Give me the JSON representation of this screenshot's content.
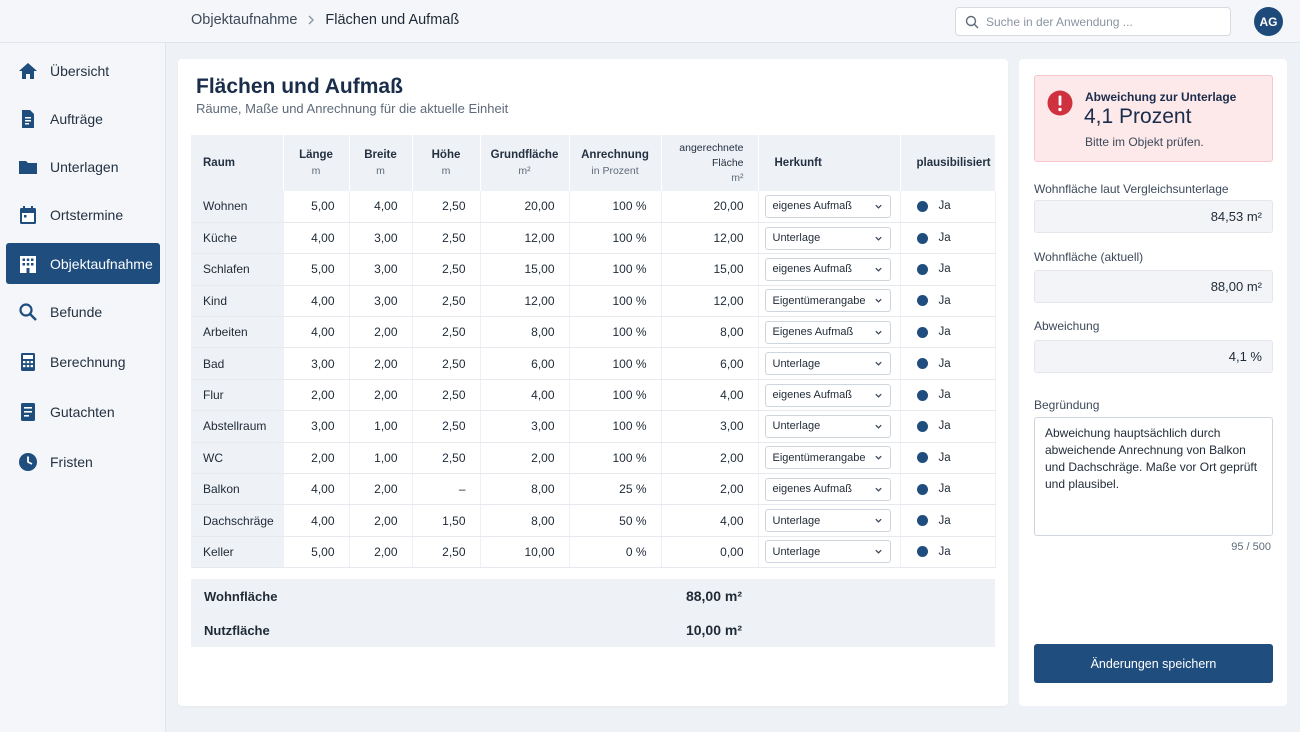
{
  "breadcrumb": {
    "parent": "Objektaufnahme",
    "current": "Flächen und Aufmaß"
  },
  "search": {
    "placeholder": "Suche in der Anwendung ..."
  },
  "user": {
    "initials": "AG"
  },
  "sidebar": {
    "items": [
      {
        "label": "Übersicht",
        "icon": "home-icon"
      },
      {
        "label": "Aufträge",
        "icon": "document-icon"
      },
      {
        "label": "Unterlagen",
        "icon": "folder-icon"
      },
      {
        "label": "Ortstermine",
        "icon": "calendar-icon"
      },
      {
        "label": "Objektaufnahme",
        "icon": "building-icon",
        "active": true
      },
      {
        "label": "Befunde",
        "icon": "search-icon"
      },
      {
        "label": "Berechnung",
        "icon": "calculator-icon"
      },
      {
        "label": "Gutachten",
        "icon": "report-icon"
      },
      {
        "label": "Fristen",
        "icon": "clock-icon"
      }
    ]
  },
  "page": {
    "title": "Flächen und Aufmaß",
    "subtitle": "Räume, Maße und Anrechnung für die aktuelle Einheit"
  },
  "table": {
    "headers": {
      "raum": "Raum",
      "laenge": "Länge",
      "laenge_unit": "m",
      "breite": "Breite",
      "breite_unit": "m",
      "hoehe": "Höhe",
      "hoehe_unit": "m",
      "grund": "Grundfläche",
      "grund_unit": "m²",
      "anrech": "Anrechnung",
      "anrech_unit": "in Prozent",
      "angerech": "angerechnete",
      "angerech2": "Fläche",
      "angerech_unit": "m²",
      "herkunft": "Herkunft",
      "plaus": "plausibilisiert"
    },
    "rows": [
      {
        "raum": "Wohnen",
        "laenge": "5,00",
        "breite": "4,00",
        "hoehe": "2,50",
        "grund": "20,00",
        "anrech": "100 %",
        "flaeche": "20,00",
        "herkunft": "eigenes Aufmaß",
        "plaus": "Ja"
      },
      {
        "raum": "Küche",
        "laenge": "4,00",
        "breite": "3,00",
        "hoehe": "2,50",
        "grund": "12,00",
        "anrech": "100 %",
        "flaeche": "12,00",
        "herkunft": "Unterlage",
        "plaus": "Ja"
      },
      {
        "raum": "Schlafen",
        "laenge": "5,00",
        "breite": "3,00",
        "hoehe": "2,50",
        "grund": "15,00",
        "anrech": "100 %",
        "flaeche": "15,00",
        "herkunft": "eigenes Aufmaß",
        "plaus": "Ja"
      },
      {
        "raum": "Kind",
        "laenge": "4,00",
        "breite": "3,00",
        "hoehe": "2,50",
        "grund": "12,00",
        "anrech": "100 %",
        "flaeche": "12,00",
        "herkunft": "Eigentümerangabe",
        "plaus": "Ja"
      },
      {
        "raum": "Arbeiten",
        "laenge": "4,00",
        "breite": "2,00",
        "hoehe": "2,50",
        "grund": "8,00",
        "anrech": "100 %",
        "flaeche": "8,00",
        "herkunft": "Eigenes Aufmaß",
        "plaus": "Ja"
      },
      {
        "raum": "Bad",
        "laenge": "3,00",
        "breite": "2,00",
        "hoehe": "2,50",
        "grund": "6,00",
        "anrech": "100 %",
        "flaeche": "6,00",
        "herkunft": "Unterlage",
        "plaus": "Ja"
      },
      {
        "raum": "Flur",
        "laenge": "2,00",
        "breite": "2,00",
        "hoehe": "2,50",
        "grund": "4,00",
        "anrech": "100 %",
        "flaeche": "4,00",
        "herkunft": "eigenes Aufmaß",
        "plaus": "Ja"
      },
      {
        "raum": "Abstellraum",
        "laenge": "3,00",
        "breite": "1,00",
        "hoehe": "2,50",
        "grund": "3,00",
        "anrech": "100 %",
        "flaeche": "3,00",
        "herkunft": "Unterlage",
        "plaus": "Ja"
      },
      {
        "raum": "WC",
        "laenge": "2,00",
        "breite": "1,00",
        "hoehe": "2,50",
        "grund": "2,00",
        "anrech": "100 %",
        "flaeche": "2,00",
        "herkunft": "Eigentümerangabe",
        "plaus": "Ja"
      },
      {
        "raum": "Balkon",
        "laenge": "4,00",
        "breite": "2,00",
        "hoehe": "–",
        "grund": "8,00",
        "anrech": "25 %",
        "flaeche": "2,00",
        "herkunft": "eigenes Aufmaß",
        "plaus": "Ja"
      },
      {
        "raum": "Dachschräge",
        "laenge": "4,00",
        "breite": "2,00",
        "hoehe": "1,50",
        "grund": "8,00",
        "anrech": "50 %",
        "flaeche": "4,00",
        "herkunft": "Unterlage",
        "plaus": "Ja"
      },
      {
        "raum": "Keller",
        "laenge": "5,00",
        "breite": "2,00",
        "hoehe": "2,50",
        "grund": "10,00",
        "anrech": "0 %",
        "flaeche": "0,00",
        "herkunft": "Unterlage",
        "plaus": "Ja"
      }
    ],
    "totals": [
      {
        "label": "Wohnfläche",
        "value": "88,00 m²"
      },
      {
        "label": "Nutzfläche",
        "value": "10,00 m²"
      }
    ]
  },
  "panel": {
    "alert": {
      "heading": "Abweichung zur Unterlage",
      "value": "4,1 Prozent",
      "text": "Bitte im Objekt prüfen."
    },
    "fields": [
      {
        "label": "Wohnfläche laut Vergleichsunterlage",
        "value": "84,53 m²"
      },
      {
        "label": "Wohnfläche (aktuell)",
        "value": "88,00 m²"
      },
      {
        "label": "Abweichung",
        "value": "4,1 %"
      }
    ],
    "reason_label": "Begründung",
    "reason_text": "Abweichung hauptsächlich durch abweichende Anrechnung von Balkon und Dachschräge. Maße vor Ort geprüft und plausibel.",
    "reason_counter": "95 / 500",
    "save_label": "Änderungen speichern"
  },
  "colors": {
    "primary": "#1e4d7e",
    "alert_bg": "#fde8ea",
    "alert_icon": "#d0313f"
  }
}
